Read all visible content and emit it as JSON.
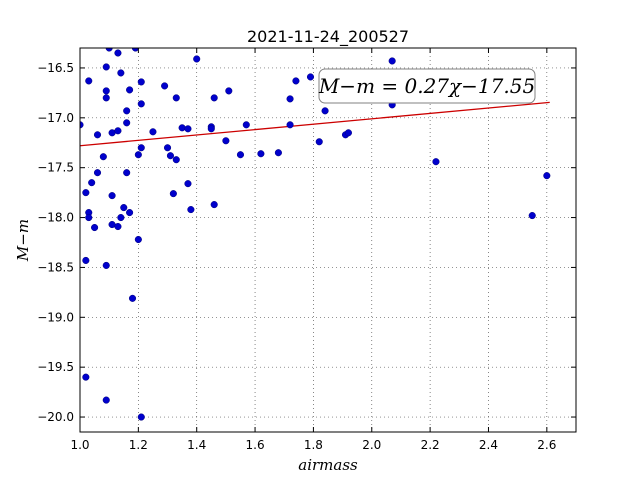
{
  "chart_data": {
    "type": "scatter",
    "title": "2021-11-24_200527",
    "xlabel": "airmass",
    "ylabel": "M−m",
    "xlim": [
      1.0,
      2.7
    ],
    "ylim": [
      -20.15,
      -16.3
    ],
    "xticks": [
      "1.0",
      "1.2",
      "1.4",
      "1.6",
      "1.8",
      "2.0",
      "2.2",
      "2.4",
      "2.6"
    ],
    "xtick_values": [
      1.0,
      1.2,
      1.4,
      1.6,
      1.8,
      2.0,
      2.2,
      2.4,
      2.6
    ],
    "yticks": [
      "−16.5",
      "−17.0",
      "−17.5",
      "−18.0",
      "−18.5",
      "−19.0",
      "−19.5",
      "−20.0"
    ],
    "ytick_values": [
      -16.5,
      -17.0,
      -17.5,
      -18.0,
      -18.5,
      -19.0,
      -19.5,
      -20.0
    ],
    "grid": true,
    "point_color": "#0000cc",
    "fit_color": "#cc0000",
    "fit": {
      "slope": 0.27,
      "intercept": -17.55,
      "x_range": [
        1.0,
        2.61
      ]
    },
    "annotation": "M−m = 0.27χ−17.55",
    "points": [
      [
        1.0,
        -17.07
      ],
      [
        1.02,
        -17.75
      ],
      [
        1.02,
        -18.43
      ],
      [
        1.02,
        -19.6
      ],
      [
        1.03,
        -16.63
      ],
      [
        1.03,
        -17.95
      ],
      [
        1.03,
        -18.0
      ],
      [
        1.04,
        -17.65
      ],
      [
        1.05,
        -18.1
      ],
      [
        1.06,
        -17.55
      ],
      [
        1.06,
        -17.17
      ],
      [
        1.08,
        -17.39
      ],
      [
        1.09,
        -18.48
      ],
      [
        1.09,
        -19.83
      ],
      [
        1.09,
        -16.8
      ],
      [
        1.09,
        -16.73
      ],
      [
        1.09,
        -16.49
      ],
      [
        1.1,
        -16.3
      ],
      [
        1.11,
        -17.15
      ],
      [
        1.11,
        -17.78
      ],
      [
        1.11,
        -18.07
      ],
      [
        1.13,
        -18.09
      ],
      [
        1.13,
        -16.35
      ],
      [
        1.13,
        -17.13
      ],
      [
        1.14,
        -16.55
      ],
      [
        1.14,
        -18.0
      ],
      [
        1.15,
        -17.9
      ],
      [
        1.16,
        -17.55
      ],
      [
        1.16,
        -16.93
      ],
      [
        1.16,
        -17.05
      ],
      [
        1.17,
        -16.72
      ],
      [
        1.17,
        -17.95
      ],
      [
        1.18,
        -18.81
      ],
      [
        1.19,
        -16.3
      ],
      [
        1.2,
        -17.37
      ],
      [
        1.2,
        -18.22
      ],
      [
        1.21,
        -20.0
      ],
      [
        1.21,
        -16.64
      ],
      [
        1.21,
        -16.86
      ],
      [
        1.21,
        -17.3
      ],
      [
        1.25,
        -17.14
      ],
      [
        1.29,
        -16.68
      ],
      [
        1.3,
        -17.3
      ],
      [
        1.31,
        -17.38
      ],
      [
        1.32,
        -17.76
      ],
      [
        1.33,
        -17.42
      ],
      [
        1.33,
        -16.8
      ],
      [
        1.35,
        -17.1
      ],
      [
        1.37,
        -17.11
      ],
      [
        1.37,
        -17.66
      ],
      [
        1.38,
        -17.92
      ],
      [
        1.4,
        -16.41
      ],
      [
        1.45,
        -17.09
      ],
      [
        1.45,
        -17.11
      ],
      [
        1.46,
        -17.87
      ],
      [
        1.46,
        -16.8
      ],
      [
        1.5,
        -17.23
      ],
      [
        1.51,
        -16.73
      ],
      [
        1.55,
        -17.37
      ],
      [
        1.57,
        -17.07
      ],
      [
        1.62,
        -17.36
      ],
      [
        1.68,
        -17.35
      ],
      [
        1.72,
        -17.07
      ],
      [
        1.72,
        -16.81
      ],
      [
        1.74,
        -16.63
      ],
      [
        1.79,
        -16.59
      ],
      [
        1.82,
        -17.24
      ],
      [
        1.84,
        -16.93
      ],
      [
        1.91,
        -17.17
      ],
      [
        1.92,
        -17.15
      ],
      [
        2.07,
        -16.43
      ],
      [
        2.07,
        -16.87
      ],
      [
        2.22,
        -17.44
      ],
      [
        2.55,
        -17.98
      ],
      [
        2.6,
        -17.58
      ]
    ]
  }
}
